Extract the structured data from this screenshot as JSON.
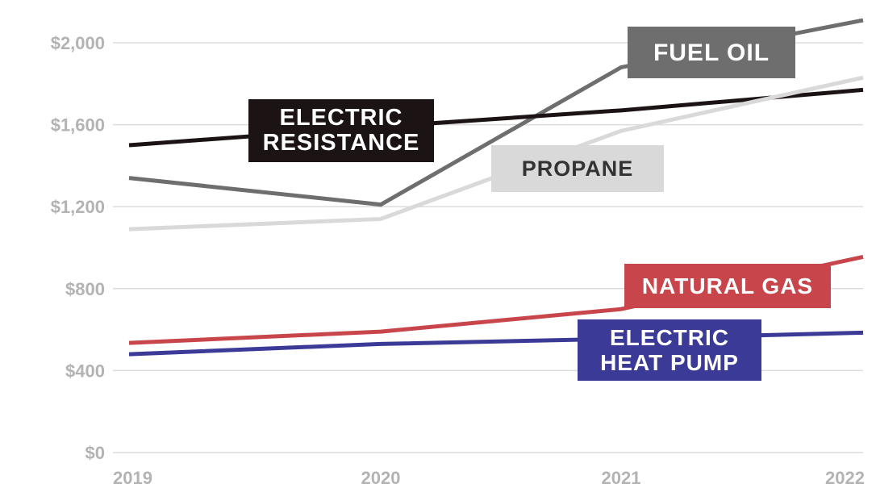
{
  "chart_data": {
    "type": "line",
    "title": "",
    "xlabel": "",
    "ylabel": "",
    "x": [
      "2019",
      "2020",
      "2021",
      "2022"
    ],
    "ylim": [
      0,
      2100
    ],
    "yticks": [
      {
        "value": 0,
        "label": "$0"
      },
      {
        "value": 400,
        "label": "$400"
      },
      {
        "value": 800,
        "label": "$800"
      },
      {
        "value": 1200,
        "label": "$1,200"
      },
      {
        "value": 1600,
        "label": "$1,600"
      },
      {
        "value": 2000,
        "label": "$2,000"
      }
    ],
    "grid": true,
    "series": [
      {
        "name": "FUEL OIL",
        "label_lines": [
          "FUEL OIL"
        ],
        "color": "#6e6e6e",
        "label_text_color": "#ffffff",
        "values": [
          1340,
          1210,
          1880,
          2110
        ]
      },
      {
        "name": "ELECTRIC RESISTANCE",
        "label_lines": [
          "ELECTRIC",
          "RESISTANCE"
        ],
        "color": "#1c1414",
        "label_text_color": "#ffffff",
        "values": [
          1500,
          1590,
          1670,
          1770
        ]
      },
      {
        "name": "PROPANE",
        "label_lines": [
          "PROPANE"
        ],
        "color": "#d9d9d9",
        "label_text_color": "#333333",
        "values": [
          1090,
          1140,
          1570,
          1830
        ]
      },
      {
        "name": "NATURAL GAS",
        "label_lines": [
          "NATURAL GAS"
        ],
        "color": "#c8464b",
        "label_text_color": "#ffffff",
        "values": [
          535,
          590,
          700,
          955
        ]
      },
      {
        "name": "ELECTRIC HEAT PUMP",
        "label_lines": [
          "ELECTRIC",
          "HEAT PUMP"
        ],
        "color": "#3b3a96",
        "label_text_color": "#ffffff",
        "values": [
          480,
          530,
          555,
          585
        ]
      }
    ]
  }
}
